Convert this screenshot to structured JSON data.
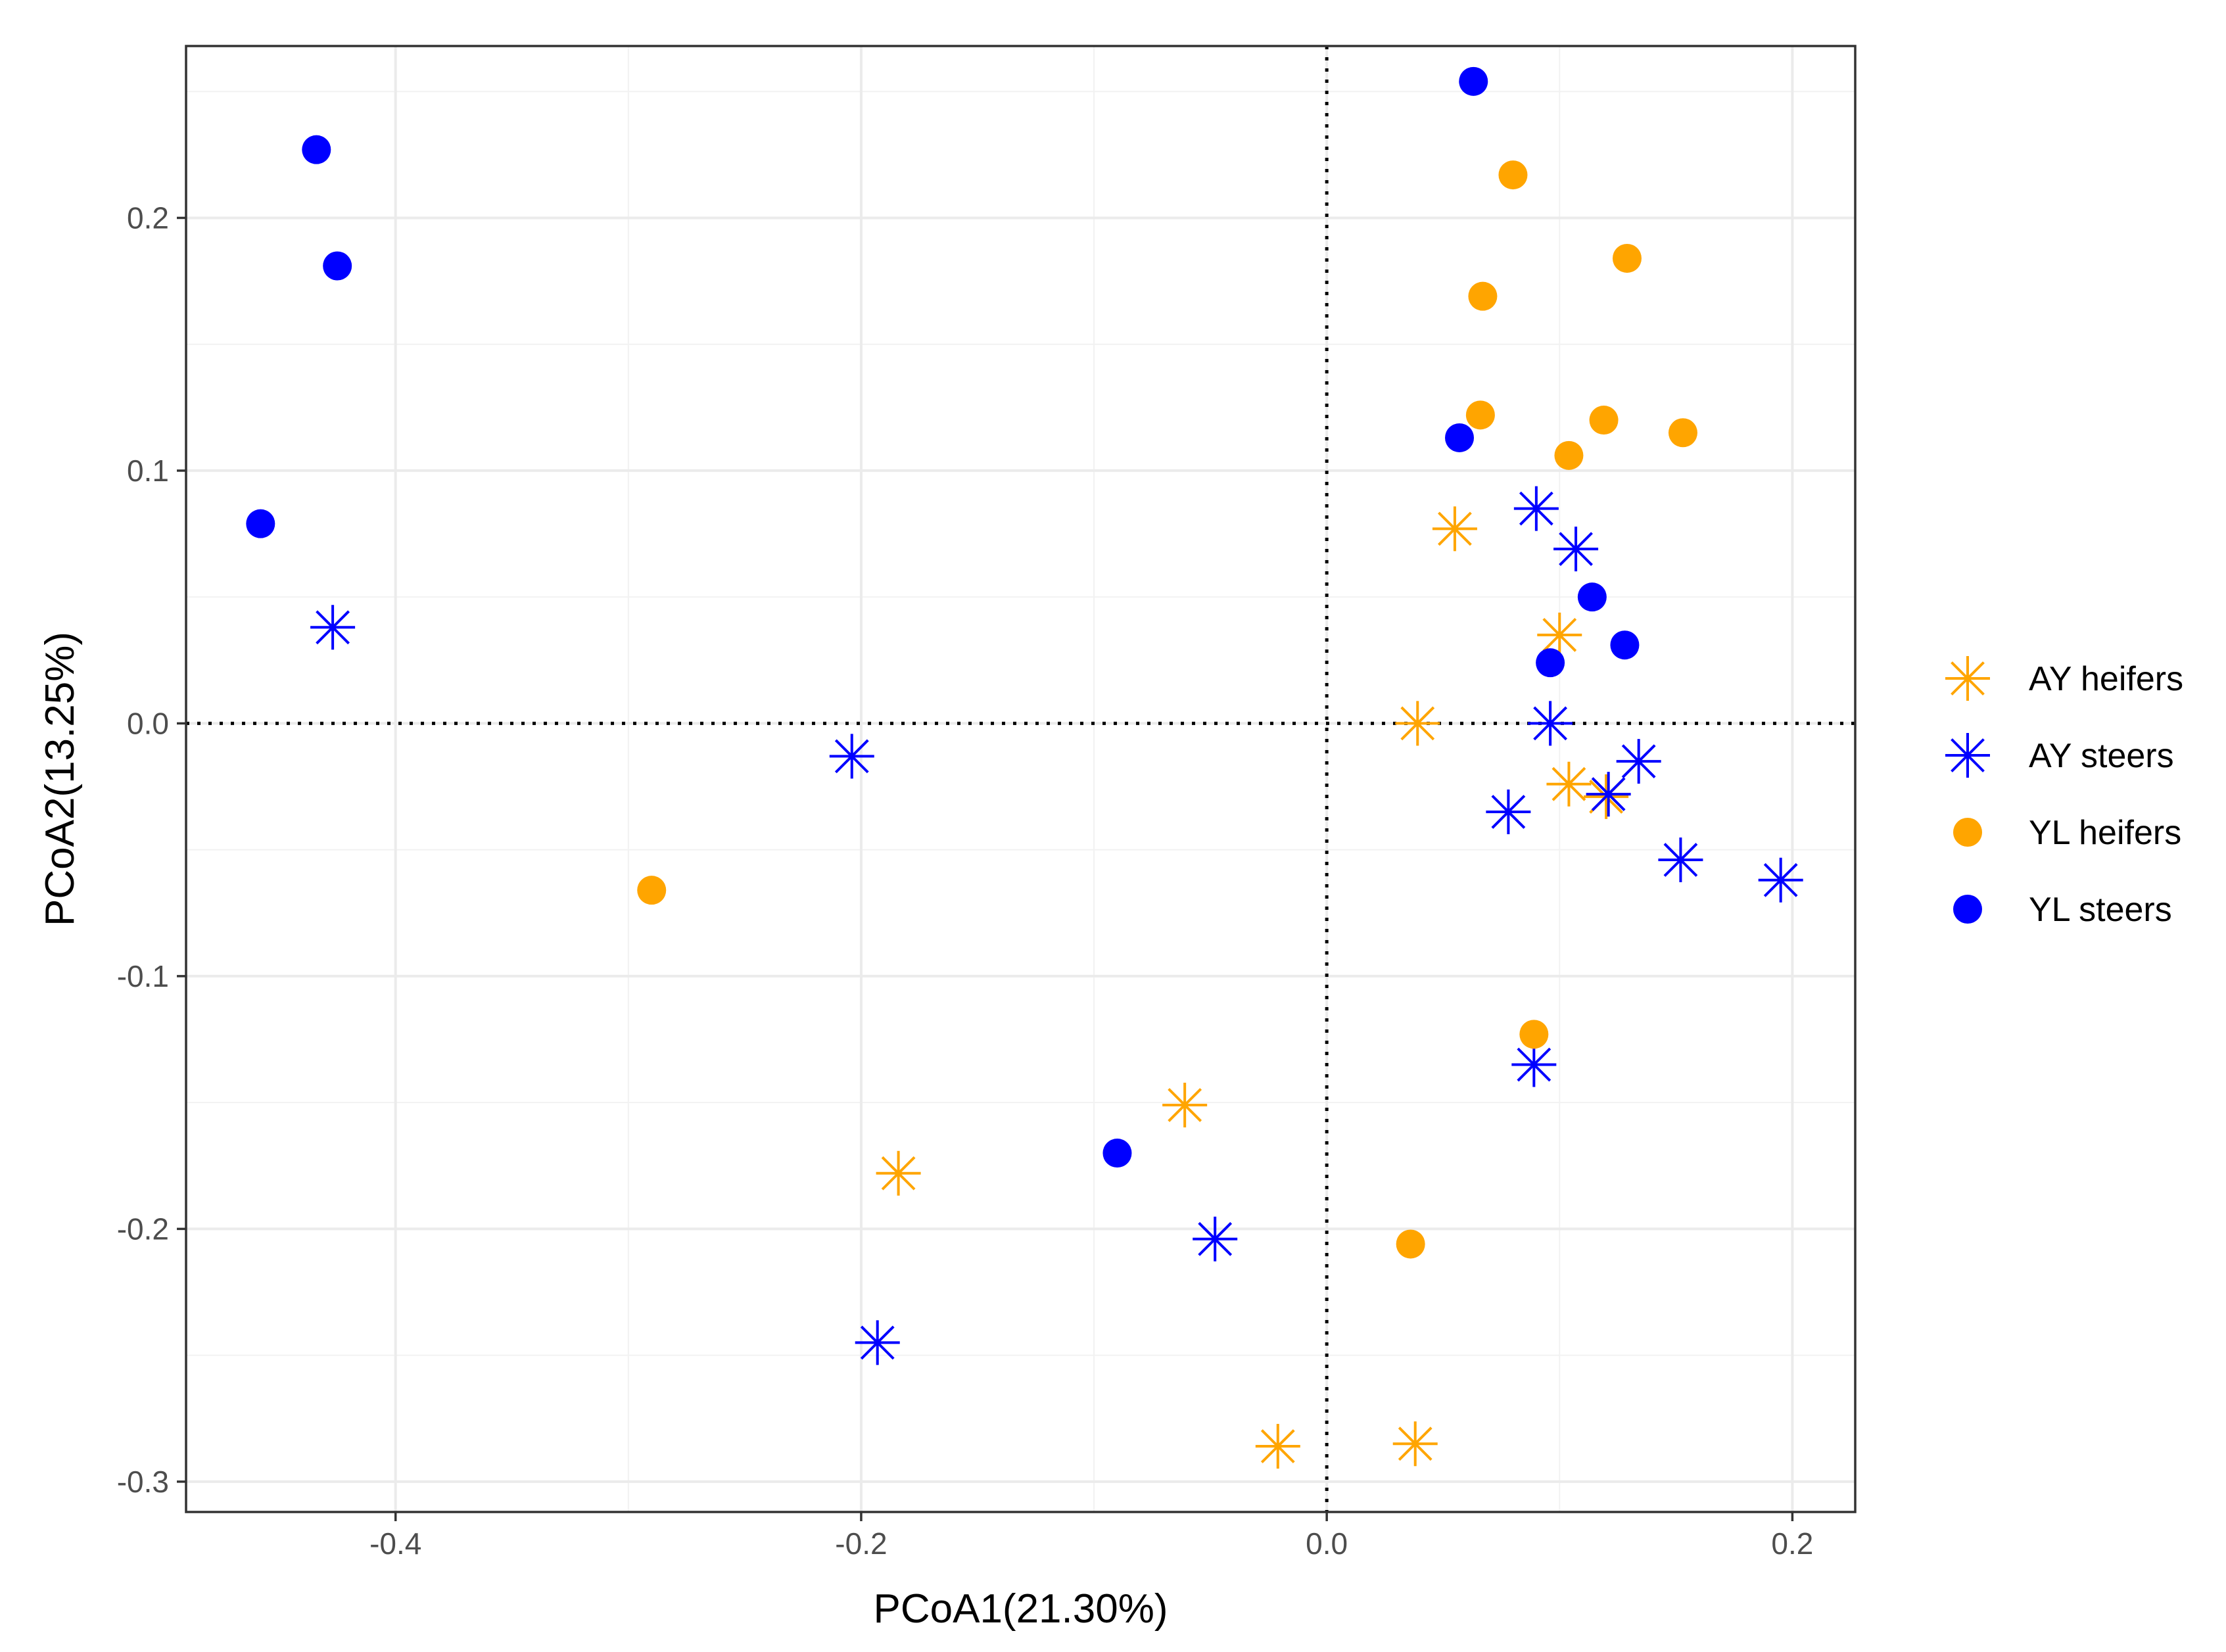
{
  "chart_data": {
    "type": "scatter",
    "title": "",
    "xlabel": "PCoA1(21.30%)",
    "ylabel": "PCoA2(13.25%)",
    "xlim": [
      -0.49,
      0.227
    ],
    "ylim": [
      -0.312,
      0.268
    ],
    "x_ticks": [
      -0.4,
      -0.2,
      0.0,
      0.2
    ],
    "x_tick_labels": [
      "-0.4",
      "-0.2",
      "0.0",
      "0.2"
    ],
    "y_ticks": [
      -0.3,
      -0.2,
      -0.1,
      0.0,
      0.1,
      0.2
    ],
    "y_tick_labels": [
      "-0.3",
      "-0.2",
      "-0.1",
      "0.0",
      "0.1",
      "0.2"
    ],
    "reference_lines": {
      "x": 0.0,
      "y": 0.0,
      "style": "dotted"
    },
    "grid": true,
    "legend_position": "right",
    "series": [
      {
        "name": "AY heifers",
        "marker": "asterisk",
        "color": "#FFA500",
        "points": [
          [
            0.055,
            0.077
          ],
          [
            0.1,
            0.035
          ],
          [
            0.039,
            0.0
          ],
          [
            0.104,
            -0.024
          ],
          [
            0.12,
            -0.029
          ],
          [
            -0.061,
            -0.151
          ],
          [
            -0.184,
            -0.178
          ],
          [
            -0.021,
            -0.286
          ],
          [
            0.038,
            -0.285
          ]
        ]
      },
      {
        "name": "AY steers",
        "marker": "asterisk",
        "color": "#0000FF",
        "points": [
          [
            -0.427,
            0.038
          ],
          [
            -0.204,
            -0.013
          ],
          [
            0.09,
            0.085
          ],
          [
            0.107,
            0.069
          ],
          [
            0.096,
            0.0
          ],
          [
            0.078,
            -0.035
          ],
          [
            0.134,
            -0.015
          ],
          [
            0.121,
            -0.028
          ],
          [
            0.152,
            -0.054
          ],
          [
            0.195,
            -0.062
          ],
          [
            0.089,
            -0.135
          ],
          [
            -0.048,
            -0.204
          ],
          [
            -0.193,
            -0.245
          ]
        ]
      },
      {
        "name": "YL heifers",
        "marker": "circle",
        "color": "#FFA500",
        "points": [
          [
            0.08,
            0.217
          ],
          [
            0.129,
            0.184
          ],
          [
            0.067,
            0.169
          ],
          [
            0.066,
            0.122
          ],
          [
            0.119,
            0.12
          ],
          [
            0.153,
            0.115
          ],
          [
            0.104,
            0.106
          ],
          [
            -0.29,
            -0.066
          ],
          [
            0.089,
            -0.123
          ],
          [
            0.036,
            -0.206
          ]
        ]
      },
      {
        "name": "YL steers",
        "marker": "circle",
        "color": "#0000FF",
        "points": [
          [
            0.063,
            0.254
          ],
          [
            -0.434,
            0.227
          ],
          [
            -0.425,
            0.181
          ],
          [
            0.057,
            0.113
          ],
          [
            -0.458,
            0.079
          ],
          [
            0.114,
            0.05
          ],
          [
            0.128,
            0.031
          ],
          [
            0.096,
            0.024
          ],
          [
            -0.09,
            -0.17
          ]
        ]
      }
    ]
  }
}
